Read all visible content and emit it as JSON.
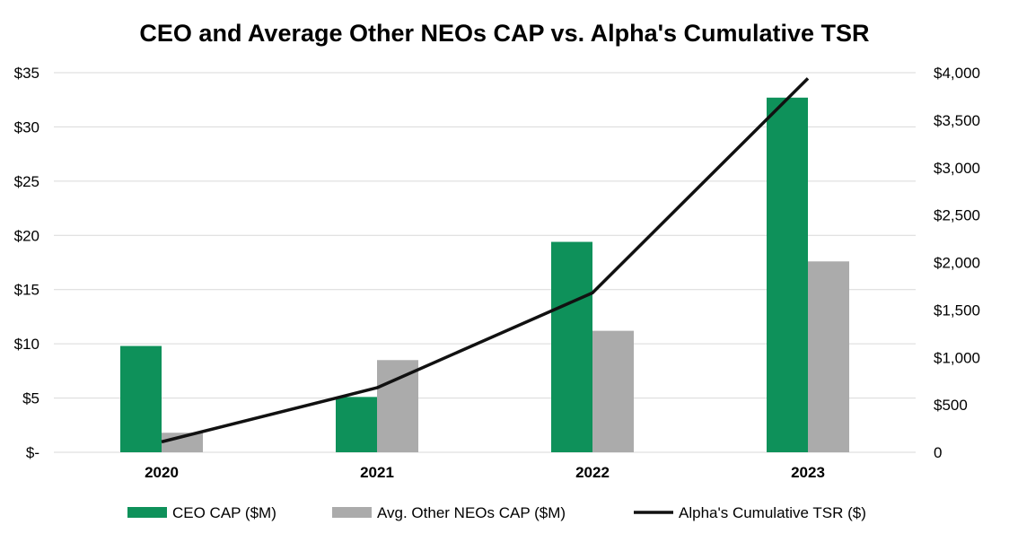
{
  "chart_data": {
    "type": "bar",
    "title": "CEO and Average Other NEOs CAP vs. Alpha's Cumulative TSR",
    "categories": [
      "2020",
      "2021",
      "2022",
      "2023"
    ],
    "series": [
      {
        "name": "CEO CAP ($M)",
        "kind": "bar",
        "axis": "left",
        "color": "#0e915a",
        "values": [
          9.8,
          5.1,
          19.4,
          32.7
        ]
      },
      {
        "name": "Avg. Other NEOs CAP ($M)",
        "kind": "bar",
        "axis": "left",
        "color": "#ababab",
        "values": [
          1.8,
          8.5,
          11.2,
          17.6
        ]
      },
      {
        "name": "Alpha's Cumulative TSR ($)",
        "kind": "line",
        "axis": "right",
        "color": "#111111",
        "values": [
          110,
          680,
          1680,
          3940
        ]
      }
    ],
    "y_left": {
      "ylim": [
        0,
        35
      ],
      "ticks": [
        0,
        5,
        10,
        15,
        20,
        25,
        30,
        35
      ],
      "tick_labels": [
        "$-",
        "$5",
        "$10",
        "$15",
        "$20",
        "$25",
        "$30",
        "$35"
      ]
    },
    "y_right": {
      "ylim": [
        0,
        4000
      ],
      "ticks": [
        0,
        500,
        1000,
        1500,
        2000,
        2500,
        3000,
        3500,
        4000
      ],
      "tick_labels": [
        "0",
        "$500",
        "$1,000",
        "$1,500",
        "$2,000",
        "$2,500",
        "$3,000",
        "$3,500",
        "$4,000"
      ]
    },
    "grid": true,
    "legend_position": "bottom"
  }
}
